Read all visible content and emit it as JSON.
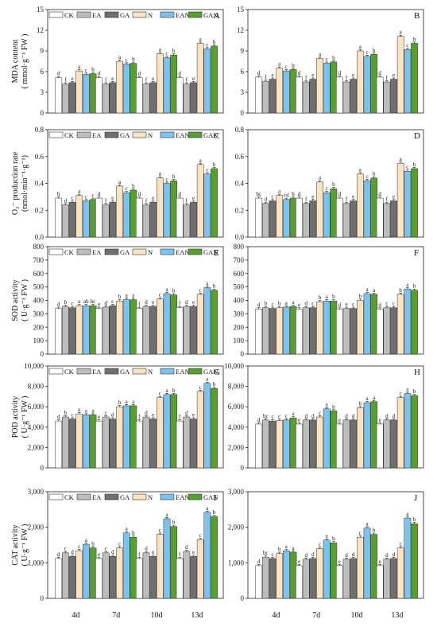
{
  "chart_data": {
    "type": "bar",
    "categories": [
      "4d",
      "7d",
      "10d",
      "13d"
    ],
    "series_names": [
      "CK",
      "EA",
      "GA",
      "N",
      "EAN",
      "GAN"
    ],
    "colors": {
      "CK": "#ffffff",
      "EA": "#bdbdbd",
      "GA": "#6f6f6f",
      "N": "#fbe3c4",
      "EAN": "#7cc3ee",
      "GAN": "#57a02f"
    },
    "legend_position": "top",
    "panels": [
      {
        "letter": "A",
        "ylabel": [
          "MDA content",
          "( mmol·g⁻¹ FW )"
        ],
        "ylim": [
          0,
          15
        ],
        "ticks": [
          "0",
          "3",
          "6",
          "9",
          "12",
          "15"
        ],
        "tickvals": [
          0,
          3,
          6,
          9,
          12,
          15
        ],
        "legend": true,
        "values": [
          [
            5.1,
            4.2,
            4.4,
            6.1,
            5.6,
            5.7
          ],
          [
            5.1,
            4.2,
            4.4,
            7.5,
            7.1,
            7.2
          ],
          [
            5.1,
            4.2,
            4.4,
            8.6,
            8.0,
            8.4
          ],
          [
            5.1,
            4.2,
            4.4,
            10.1,
            9.3,
            9.7
          ]
        ],
        "labels": [
          [
            "d",
            "f",
            "e",
            "a",
            "c",
            "b"
          ],
          [
            "d",
            "f",
            "e",
            "a",
            "c",
            "b"
          ],
          [
            "d",
            "f",
            "e",
            "a",
            "c",
            "b"
          ],
          [
            "d",
            "f",
            "e",
            "a",
            "c",
            "b"
          ]
        ]
      },
      {
        "letter": "B",
        "ylabel": [],
        "ylim": [
          0,
          15
        ],
        "ticks": [
          "0",
          "3",
          "6",
          "9",
          "12",
          "15"
        ],
        "tickvals": [
          0,
          3,
          6,
          9,
          12,
          15
        ],
        "legend": false,
        "values": [
          [
            5.2,
            4.6,
            4.9,
            6.5,
            6.1,
            6.3
          ],
          [
            5.2,
            4.5,
            4.9,
            7.9,
            7.2,
            7.4
          ],
          [
            5.2,
            4.5,
            4.9,
            9.0,
            8.2,
            8.5
          ],
          [
            5.2,
            4.5,
            4.9,
            11.1,
            9.2,
            10.1
          ]
        ],
        "labels": [
          [
            "d",
            "f",
            "e",
            "a",
            "c",
            "b"
          ],
          [
            "d",
            "f",
            "e",
            "a",
            "c",
            "b"
          ],
          [
            "d",
            "f",
            "e",
            "a",
            "c",
            "b"
          ],
          [
            "d",
            "f",
            "e",
            "a",
            "c",
            "b"
          ]
        ]
      },
      {
        "letter": "C",
        "ylabel": [
          "O₂⁻ production rate",
          "(nmol·min⁻¹·g⁻¹)"
        ],
        "ylim": [
          0,
          0.8
        ],
        "ticks": [
          "0.0",
          "0.2",
          "0.4",
          "0.6",
          "0.8"
        ],
        "tickvals": [
          0,
          0.2,
          0.4,
          0.6,
          0.8
        ],
        "legend": true,
        "values": [
          [
            0.29,
            0.24,
            0.26,
            0.31,
            0.27,
            0.28
          ],
          [
            0.29,
            0.24,
            0.26,
            0.38,
            0.33,
            0.35
          ],
          [
            0.29,
            0.24,
            0.26,
            0.44,
            0.4,
            0.42
          ],
          [
            0.29,
            0.24,
            0.26,
            0.54,
            0.47,
            0.51
          ]
        ],
        "labels": [
          [
            "b",
            "d",
            "c",
            "a",
            "c",
            "c"
          ],
          [
            "d",
            "f",
            "e",
            "a",
            "c",
            "b"
          ],
          [
            "d",
            "f",
            "e",
            "a",
            "c",
            "b"
          ],
          [
            "d",
            "f",
            "e",
            "a",
            "c",
            "b"
          ]
        ]
      },
      {
        "letter": "D",
        "ylabel": [],
        "ylim": [
          0,
          0.8
        ],
        "ticks": [
          "0.0",
          "0.2",
          "0.4",
          "0.6",
          "0.8"
        ],
        "tickvals": [
          0,
          0.2,
          0.4,
          0.6,
          0.8
        ],
        "legend": false,
        "values": [
          [
            0.29,
            0.25,
            0.27,
            0.31,
            0.28,
            0.29
          ],
          [
            0.29,
            0.25,
            0.27,
            0.41,
            0.33,
            0.36
          ],
          [
            0.29,
            0.25,
            0.27,
            0.47,
            0.42,
            0.44
          ],
          [
            0.29,
            0.25,
            0.27,
            0.55,
            0.49,
            0.51
          ]
        ],
        "labels": [
          [
            "bc",
            "d",
            "c",
            "a",
            "cd",
            "b"
          ],
          [
            "d",
            "f",
            "e",
            "a",
            "c",
            "b"
          ],
          [
            "d",
            "f",
            "e",
            "a",
            "c",
            "b"
          ],
          [
            "d",
            "f",
            "e",
            "a",
            "c",
            "b"
          ]
        ]
      },
      {
        "letter": "E",
        "ylabel": [
          "SOD activity",
          "( U·g⁻¹ FW )"
        ],
        "ylim": [
          0,
          800
        ],
        "ticks": [
          "0",
          "100",
          "200",
          "300",
          "400",
          "500",
          "600",
          "700",
          "800"
        ],
        "tickvals": [
          0,
          100,
          200,
          300,
          400,
          500,
          600,
          700,
          800
        ],
        "legend": true,
        "values": [
          [
            340,
            355,
            345,
            360,
            360,
            360
          ],
          [
            340,
            350,
            360,
            395,
            405,
            405
          ],
          [
            340,
            355,
            355,
            410,
            450,
            440
          ],
          [
            345,
            355,
            355,
            445,
            495,
            475
          ]
        ],
        "labels": [
          [
            "d",
            "b",
            "c",
            "a",
            "ab",
            "bc"
          ],
          [
            "e",
            "d",
            "c",
            "b",
            "a",
            "a"
          ],
          [
            "f",
            "d",
            "e",
            "c",
            "a",
            "b"
          ],
          [
            "f",
            "d",
            "e",
            "c",
            "a",
            "b"
          ]
        ]
      },
      {
        "letter": "F",
        "ylabel": [],
        "ylim": [
          0,
          800
        ],
        "ticks": [
          "0",
          "100",
          "200",
          "300",
          "400",
          "500",
          "600",
          "700",
          "800"
        ],
        "tickvals": [
          0,
          100,
          200,
          300,
          400,
          500,
          600,
          700,
          800
        ],
        "legend": false,
        "values": [
          [
            335,
            345,
            340,
            345,
            350,
            355
          ],
          [
            335,
            345,
            345,
            390,
            395,
            395
          ],
          [
            335,
            340,
            340,
            400,
            450,
            445
          ],
          [
            335,
            345,
            345,
            445,
            485,
            475
          ]
        ],
        "labels": [
          [
            "d",
            "b",
            "c",
            "b",
            "a",
            "a"
          ],
          [
            "e",
            "d",
            "c",
            "b",
            "a",
            "b"
          ],
          [
            "d",
            "e",
            "c",
            "b",
            "a",
            "a"
          ],
          [
            "d",
            "c",
            "c",
            "b",
            "a",
            "b"
          ]
        ]
      },
      {
        "letter": "G",
        "ylabel": [
          "POD activity",
          "( U·g⁻¹ FW )"
        ],
        "ylim": [
          0,
          10000
        ],
        "ticks": [
          "0",
          "2,000",
          "4,000",
          "6,000",
          "8,000",
          "10,000"
        ],
        "tickvals": [
          0,
          2000,
          4000,
          6000,
          8000,
          10000
        ],
        "legend": true,
        "values": [
          [
            4600,
            5000,
            4800,
            5300,
            5200,
            5200
          ],
          [
            4600,
            5000,
            4800,
            6000,
            6100,
            6100
          ],
          [
            4600,
            5000,
            4800,
            6900,
            7200,
            7200
          ],
          [
            4600,
            5000,
            4800,
            7500,
            8300,
            7800
          ]
        ],
        "labels": [
          [
            "d",
            "b",
            "c",
            "a",
            "a",
            "a"
          ],
          [
            "e",
            "c",
            "d",
            "b",
            "a",
            "a"
          ],
          [
            "f",
            "d",
            "e",
            "c",
            "a",
            "b"
          ],
          [
            "f",
            "d",
            "e",
            "c",
            "a",
            "b"
          ]
        ]
      },
      {
        "letter": "H",
        "ylabel": [],
        "ylim": [
          0,
          10000
        ],
        "ticks": [
          "0",
          "2,000",
          "4,000",
          "6,000",
          "8,000",
          "10,000"
        ],
        "tickvals": [
          0,
          2000,
          4000,
          6000,
          8000,
          10000
        ],
        "legend": false,
        "values": [
          [
            4300,
            4700,
            4600,
            4650,
            4700,
            4900
          ],
          [
            4300,
            4700,
            4700,
            5000,
            5800,
            5600
          ],
          [
            4300,
            4700,
            4700,
            5900,
            6400,
            6500
          ],
          [
            4300,
            4700,
            4700,
            6900,
            7300,
            7100
          ]
        ],
        "labels": [
          [
            "d",
            "bc",
            "c",
            "c",
            "c",
            "a"
          ],
          [
            "e",
            "d",
            "d",
            "c",
            "a",
            "b"
          ],
          [
            "e",
            "d",
            "d",
            "b",
            "a",
            "a"
          ],
          [
            "e",
            "d",
            "d",
            "c",
            "a",
            "b"
          ]
        ]
      },
      {
        "letter": "I",
        "ylabel": [
          "CAT activity",
          "( U·g⁻¹ FW )"
        ],
        "ylim": [
          0,
          3000
        ],
        "ticks": [
          "0",
          "1,000",
          "2,000",
          "3,000"
        ],
        "tickvals": [
          0,
          1000,
          2000,
          3000
        ],
        "legend": true,
        "values": [
          [
            1120,
            1280,
            1180,
            1340,
            1520,
            1420
          ],
          [
            1120,
            1280,
            1180,
            1420,
            1840,
            1720
          ],
          [
            1120,
            1280,
            1180,
            1800,
            2240,
            2020
          ],
          [
            1120,
            1320,
            1180,
            1650,
            2420,
            2300
          ]
        ],
        "labels": [
          [
            "d",
            "c",
            "d",
            "c",
            "a",
            "b"
          ],
          [
            "e",
            "c",
            "d",
            "c",
            "a",
            "b"
          ],
          [
            "f",
            "d",
            "e",
            "c",
            "a",
            "b"
          ],
          [
            "f",
            "d",
            "e",
            "c",
            "a",
            "b"
          ]
        ]
      },
      {
        "letter": "J",
        "ylabel": [],
        "ylim": [
          0,
          3000
        ],
        "ticks": [
          "0",
          "1,000",
          "2,000",
          "3,000"
        ],
        "tickvals": [
          0,
          1000,
          2000,
          3000
        ],
        "legend": false,
        "values": [
          [
            920,
            1160,
            1120,
            1260,
            1340,
            1300
          ],
          [
            920,
            1100,
            1120,
            1400,
            1640,
            1560
          ],
          [
            920,
            1100,
            1120,
            1720,
            1980,
            1800
          ],
          [
            920,
            1100,
            1120,
            1420,
            2260,
            2100
          ]
        ],
        "labels": [
          [
            "d",
            "bc",
            "c",
            "b",
            "a",
            "a"
          ],
          [
            "e",
            "d",
            "d",
            "c",
            "a",
            "b"
          ],
          [
            "e",
            "d",
            "d",
            "c",
            "a",
            "b"
          ],
          [
            "e",
            "d",
            "d",
            "c",
            "a",
            "b"
          ]
        ]
      }
    ]
  }
}
